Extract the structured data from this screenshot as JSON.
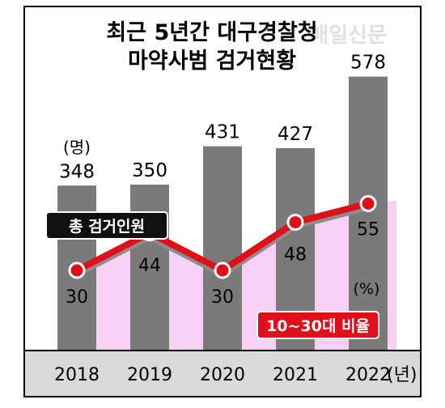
{
  "chart_data": {
    "type": "bar+line",
    "title_lines": [
      "최근 5년간 대구경찰청",
      "마약사범 검거현황"
    ],
    "watermark": "매일신문",
    "categories": [
      "2018",
      "2019",
      "2020",
      "2021",
      "2022"
    ],
    "x_unit": "(년)",
    "bar_unit": "(명)",
    "line_unit": "(%)",
    "series": [
      {
        "name": "총 검거인원",
        "values": [
          348,
          350,
          431,
          427,
          578
        ],
        "color": "#7a7a7a"
      },
      {
        "name": "10~30대 비율",
        "values": [
          30,
          44,
          30,
          48,
          55
        ],
        "color": "#e0101a",
        "fill": "#f8d0f4"
      }
    ],
    "colors": {
      "bar": "#7a7a7a",
      "line": "#e0101a",
      "area": "#f8d0f4",
      "legend_bar_bg": "#111111",
      "axis_strip": "#d9d9d9",
      "frame": "#000000"
    },
    "bar_ylim": [
      0,
      620
    ],
    "line_ylim": [
      0,
      110
    ]
  }
}
